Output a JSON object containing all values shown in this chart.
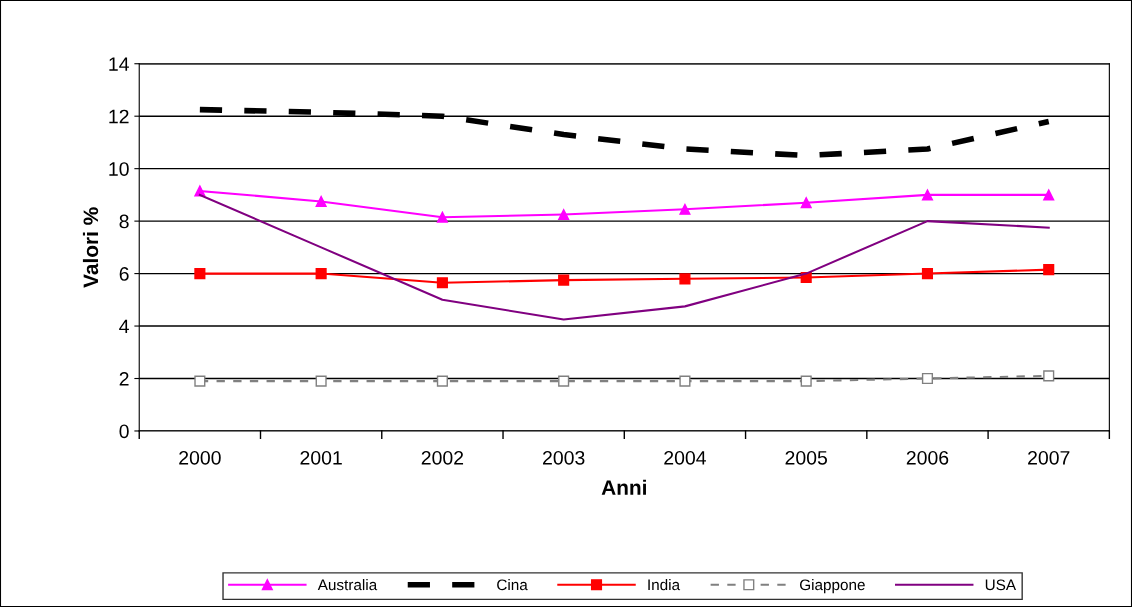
{
  "chart_data": {
    "type": "line",
    "xlabel": "Anni",
    "ylabel": "Valori %",
    "categories": [
      "2000",
      "2001",
      "2002",
      "2003",
      "2004",
      "2005",
      "2006",
      "2007"
    ],
    "series": [
      {
        "name": "Australia",
        "color": "#ff00ff",
        "marker": "triangle",
        "line_style": "solid",
        "values": [
          9.15,
          8.75,
          8.15,
          8.25,
          8.45,
          8.7,
          9.0,
          9.0
        ]
      },
      {
        "name": "Cina",
        "color": "#000000",
        "marker": "none",
        "line_style": "dashed",
        "values": [
          12.25,
          12.15,
          12.0,
          11.3,
          10.75,
          10.5,
          10.75,
          11.8
        ]
      },
      {
        "name": "India",
        "color": "#ff0000",
        "marker": "square",
        "line_style": "solid",
        "values": [
          6.0,
          6.0,
          5.65,
          5.75,
          5.8,
          5.85,
          6.0,
          6.15
        ]
      },
      {
        "name": "Giappone",
        "color": "#808080",
        "marker": "square",
        "line_style": "dashed",
        "values": [
          1.9,
          1.9,
          1.9,
          1.9,
          1.9,
          1.9,
          2.0,
          2.1
        ]
      },
      {
        "name": "USA",
        "color": "#800080",
        "marker": "none",
        "line_style": "solid",
        "values": [
          9.0,
          7.0,
          5.0,
          4.25,
          4.75,
          6.0,
          8.0,
          7.75
        ]
      }
    ],
    "ylim": [
      0,
      14
    ],
    "yticks": [
      0,
      2,
      4,
      6,
      8,
      10,
      12,
      14
    ],
    "grid": "y",
    "legend": "bottom"
  }
}
